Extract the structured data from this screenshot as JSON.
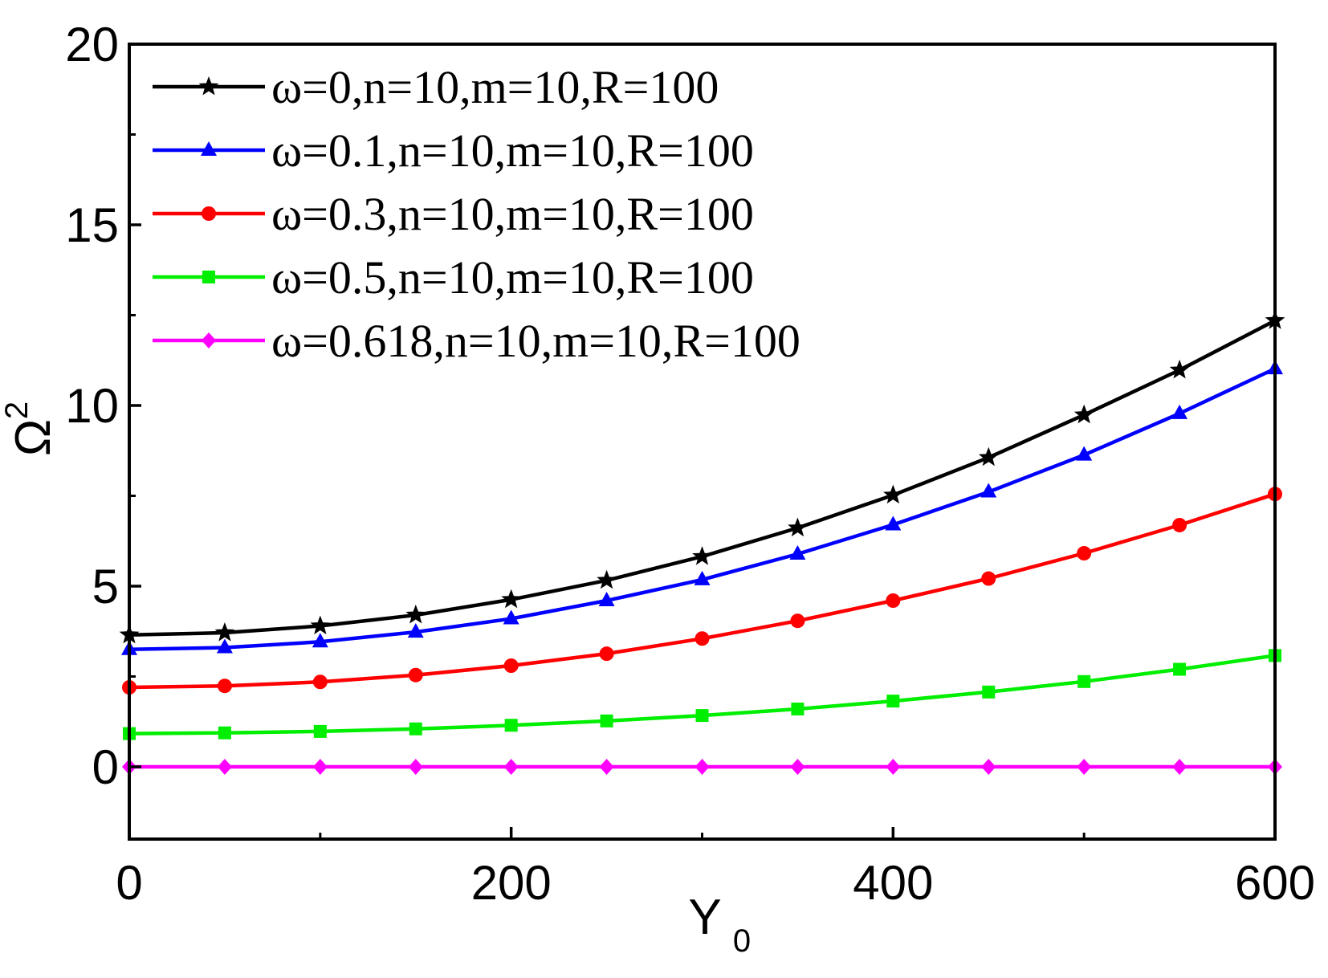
{
  "chart_data": {
    "type": "line",
    "title": "",
    "xlabel": {
      "main": "Y",
      "sub": "0"
    },
    "ylabel": {
      "main": "Ω",
      "sup": "2"
    },
    "xlim": [
      0,
      600
    ],
    "ylim": [
      -2,
      20
    ],
    "xticks": [
      0,
      200,
      400,
      600
    ],
    "xtick_labels": [
      "0",
      "200",
      "400",
      "600"
    ],
    "yticks": [
      0,
      5,
      10,
      15,
      20
    ],
    "ytick_labels": [
      "0",
      "5",
      "10",
      "15",
      "20"
    ],
    "x_minor_step": 100,
    "y_minor_step": 2.5,
    "grid": false,
    "legend_position": "top-left",
    "x": [
      0,
      50,
      100,
      150,
      200,
      250,
      300,
      350,
      400,
      450,
      500,
      550,
      600
    ],
    "series": [
      {
        "name": "ω=0,n=10,m=10,R=100",
        "color": "#000000",
        "marker": "star",
        "values": [
          3.65,
          3.71,
          3.9,
          4.2,
          4.63,
          5.16,
          5.82,
          6.61,
          7.52,
          8.56,
          9.74,
          10.98,
          12.35
        ]
      },
      {
        "name": "ω=0.1,n=10,m=10,R=100",
        "color": "#0000ff",
        "marker": "triangle",
        "values": [
          3.25,
          3.3,
          3.46,
          3.73,
          4.1,
          4.6,
          5.18,
          5.89,
          6.7,
          7.61,
          8.63,
          9.78,
          11.02
        ]
      },
      {
        "name": "ω=0.3,n=10,m=10,R=100",
        "color": "#ff0000",
        "marker": "circle",
        "values": [
          2.2,
          2.24,
          2.35,
          2.54,
          2.8,
          3.13,
          3.55,
          4.04,
          4.6,
          5.21,
          5.91,
          6.69,
          7.55
        ]
      },
      {
        "name": "ω=0.5,n=10,m=10,R=100",
        "color": "#00ee00",
        "marker": "square",
        "values": [
          0.92,
          0.94,
          0.98,
          1.05,
          1.15,
          1.27,
          1.42,
          1.6,
          1.82,
          2.07,
          2.36,
          2.7,
          3.08
        ]
      },
      {
        "name": "ω=0.618,n=10,m=10,R=100",
        "color": "#ff00ff",
        "marker": "diamond",
        "values": [
          0,
          0,
          0,
          0,
          0,
          0,
          0,
          0,
          0,
          0,
          0,
          0,
          0
        ]
      }
    ]
  }
}
